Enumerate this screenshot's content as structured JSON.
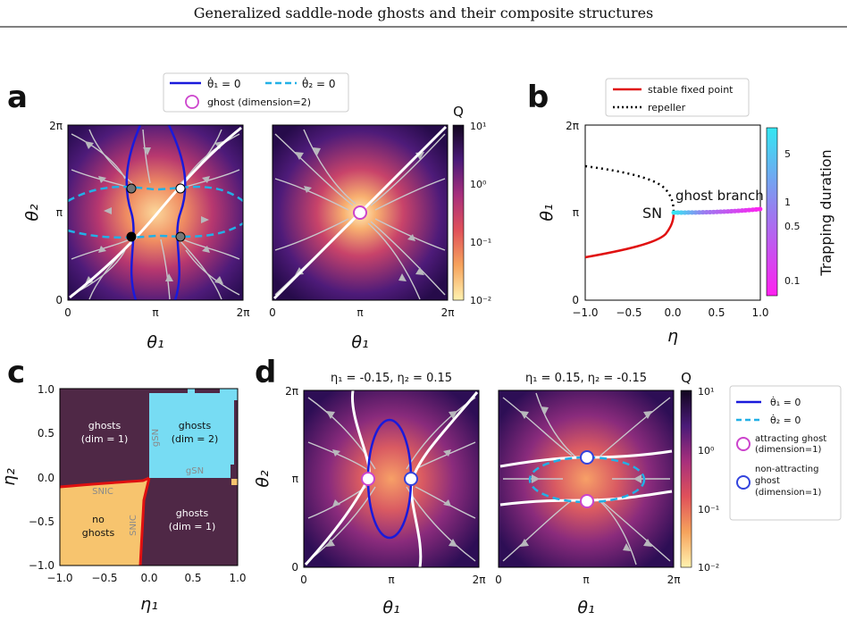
{
  "header": {
    "title": "Generalized saddle-node ghosts and their composite structures"
  },
  "panel_labels": {
    "a": "a",
    "b": "b",
    "c": "c",
    "d": "d"
  },
  "colors": {
    "nullcline1": "#1a1adb",
    "nullcline2": "#22b0e6",
    "ghost_attracting": "#cc44cc",
    "ghost_nonattracting": "#3344dd",
    "stable": "#e01010",
    "region_ghosts_dim1": "#4f2846",
    "region_ghosts_dim2": "#77dcf3",
    "region_no_ghosts": "#f7c46e",
    "cmap_low": "#fff2b0",
    "cmap_high": "#12061f"
  },
  "panel_a": {
    "legend": {
      "nullcline1": "θ̇₁ = 0",
      "nullcline2": "θ̇₂ = 0",
      "ghost": "ghost (dimension=2)"
    },
    "colorbar": {
      "title": "Q",
      "ticks": [
        "10¹",
        "10⁰",
        "10⁻¹",
        "10⁻²"
      ]
    },
    "plot1": {
      "xlabel": "θ₁",
      "ylabel": "θ₂",
      "xticks": [
        "0",
        "π",
        "2π"
      ],
      "yticks": [
        "0",
        "π",
        "2π"
      ]
    },
    "plot2": {
      "xlabel": "θ₁",
      "xticks": [
        "0",
        "π",
        "2π"
      ]
    }
  },
  "panel_b": {
    "legend": {
      "stable": "stable fixed point",
      "repeller": "repeller"
    },
    "xlabel": "η",
    "ylabel": "θ₁",
    "xticks": [
      "−1.0",
      "−0.5",
      "0.0",
      "0.5",
      "1.0"
    ],
    "yticks": [
      "0",
      "π",
      "2π"
    ],
    "annotations": {
      "sn": "SN",
      "ghost_branch": "ghost branch"
    },
    "colorbar": {
      "title": "Trapping duration",
      "ticks": [
        "5",
        "1",
        "0.5",
        "0.1"
      ]
    }
  },
  "panel_c": {
    "xlabel": "η₁",
    "ylabel": "η₂",
    "xticks": [
      "−1.0",
      "−0.5",
      "0.0",
      "0.5",
      "1.0"
    ],
    "yticks": [
      "1.0",
      "0.5",
      "0.0",
      "−0.5",
      "−1.0"
    ],
    "regions": {
      "top_left": [
        "ghosts",
        "(dim = 1)"
      ],
      "top_right": [
        "ghosts",
        "(dim = 2)"
      ],
      "bottom_left": [
        "no",
        "ghosts"
      ],
      "bottom_right": [
        "ghosts",
        "(dim = 1)"
      ]
    },
    "boundary_labels": {
      "gsn_vertical": "gSN",
      "gsn_horizontal": "gSN",
      "snic_horizontal": "SNIC",
      "snic_vertical": "SNIC"
    }
  },
  "panel_d": {
    "plot1": {
      "title": "η₁ = -0.15, η₂ = 0.15",
      "xlabel": "θ₁",
      "ylabel": "θ₂",
      "xticks": [
        "0",
        "π",
        "2π"
      ],
      "yticks": [
        "0",
        "π",
        "2π"
      ]
    },
    "plot2": {
      "title": "η₁ = 0.15, η₂ = -0.15",
      "xlabel": "θ₁",
      "xticks": [
        "0",
        "π",
        "2π"
      ]
    },
    "colorbar": {
      "title": "Q",
      "ticks": [
        "10¹",
        "10⁰",
        "10⁻¹",
        "10⁻²"
      ]
    },
    "legend": {
      "nullcline1": "θ̇₁ = 0",
      "nullcline2": "θ̇₂ = 0",
      "attracting": [
        "attracting ghost",
        "(dimension=1)"
      ],
      "nonattracting": [
        "non-attracting",
        "ghost",
        "(dimension=1)"
      ]
    }
  }
}
